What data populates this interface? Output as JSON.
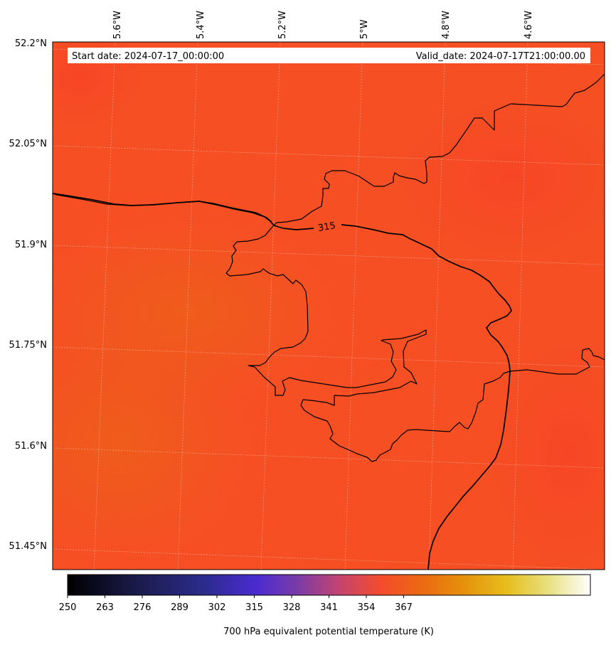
{
  "map": {
    "info": {
      "start_date": "Start date: 2024-07-17_00:00:00",
      "valid_date": "Valid_date: 2024-07-17T21:00:00.00"
    },
    "lon_labels": [
      "5.6°W",
      "5.4°W",
      "5.2°W",
      "5°W",
      "4.8°W",
      "4.6°W"
    ],
    "lat_labels": [
      "52.2°N",
      "52.05°N",
      "51.9°N",
      "51.75°N",
      "51.6°N",
      "51.45°N"
    ],
    "contour_label": "315",
    "field_color": "#f64f24",
    "coast_color": "#000000"
  },
  "colorbar": {
    "ticks": [
      "250",
      "263",
      "276",
      "289",
      "302",
      "315",
      "328",
      "341",
      "354",
      "367"
    ],
    "label": "700 hPa equivalent potential temperature (K)",
    "colormap": "CMRmap"
  }
}
